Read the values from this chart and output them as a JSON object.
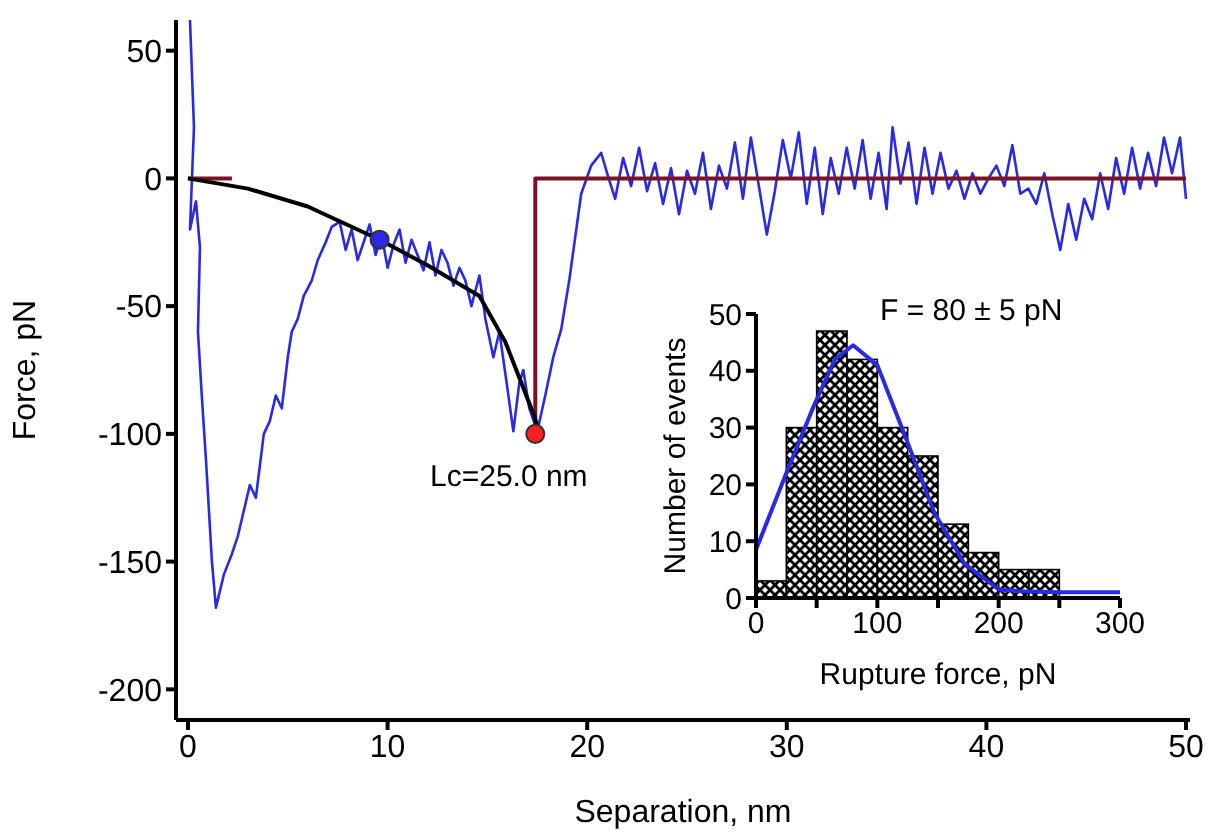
{
  "chart_data": [
    {
      "type": "line",
      "xlabel": "Separation, nm",
      "ylabel": "Force, pN",
      "xlim": [
        -0.6,
        50.2
      ],
      "ylim": [
        -212,
        62
      ],
      "xticks": [
        0,
        10,
        20,
        30,
        40,
        50
      ],
      "yticks": [
        50,
        0,
        -50,
        -100,
        -150,
        -200
      ],
      "annotations": [
        "Lc=25.0 nm"
      ],
      "series": [
        {
          "color": "#2a2ae6",
          "x": [
            0.1,
            0.3,
            0.1,
            0.4,
            0.6,
            0.5,
            0.7,
            0.9,
            1.2,
            1.4,
            1.8,
            2.2,
            2.5,
            2.8,
            3.1,
            3.4,
            3.8,
            4.1,
            4.4,
            4.7,
            5.0,
            5.2,
            5.5,
            5.8,
            6.2,
            6.5,
            6.9,
            7.2,
            7.6,
            7.9,
            8.2,
            8.5,
            8.8,
            9.1,
            9.4,
            9.7,
            10.0,
            10.3,
            10.6,
            10.9,
            11.2,
            11.5,
            11.8,
            12.1,
            12.4,
            12.7,
            13.0,
            13.3,
            13.6,
            13.9,
            14.2,
            14.6,
            14.9,
            15.3,
            15.6,
            16.0,
            16.3,
            16.6,
            16.8,
            17.1,
            17.5,
            17.9,
            18.3,
            18.7,
            19.1,
            19.7,
            20.2,
            20.7,
            21.0,
            21.4,
            21.8,
            22.2,
            22.6,
            23.0,
            23.4,
            23.8,
            24.2,
            24.6,
            25.0,
            25.4,
            25.8,
            26.2,
            26.6,
            27.0,
            27.4,
            27.8,
            28.2,
            28.6,
            29.0,
            29.4,
            29.8,
            30.2,
            30.6,
            31.0,
            31.4,
            31.8,
            32.2,
            32.6,
            33.0,
            33.4,
            33.8,
            34.2,
            34.6,
            35.0,
            35.3,
            35.7,
            36.1,
            36.5,
            36.9,
            37.3,
            37.7,
            38.1,
            38.5,
            38.9,
            39.3,
            39.7,
            40.1,
            40.5,
            40.9,
            41.3,
            41.7,
            42.1,
            42.5,
            42.9,
            43.3,
            43.7,
            44.1,
            44.5,
            44.9,
            45.3,
            45.7,
            46.1,
            46.5,
            46.9,
            47.3,
            47.7,
            48.1,
            48.5,
            48.9,
            49.3,
            49.7,
            50.0
          ],
          "values": [
            62,
            20,
            -20,
            -9,
            -27,
            -60,
            -86,
            -110,
            -150,
            -168,
            -155,
            -147,
            -140,
            -130,
            -120,
            -125,
            -100,
            -95,
            -85,
            -90,
            -70,
            -60,
            -55,
            -46,
            -40,
            -32,
            -25,
            -19,
            -17,
            -28,
            -20,
            -32,
            -25,
            -18,
            -30,
            -22,
            -35,
            -26,
            -20,
            -33,
            -24,
            -30,
            -36,
            -25,
            -38,
            -28,
            -33,
            -42,
            -35,
            -40,
            -50,
            -38,
            -55,
            -70,
            -60,
            -82,
            -99,
            -80,
            -75,
            -90,
            -99,
            -85,
            -70,
            -59,
            -40,
            -6,
            5,
            10,
            2,
            -8,
            8,
            -3,
            12,
            -5,
            6,
            -10,
            4,
            -14,
            3,
            -6,
            10,
            -12,
            5,
            -4,
            14,
            -8,
            16,
            -3,
            -22,
            -5,
            15,
            0,
            18,
            -10,
            12,
            -14,
            8,
            -6,
            12,
            -4,
            15,
            -8,
            10,
            -12,
            20,
            -2,
            14,
            -10,
            12,
            -6,
            10,
            -4,
            3,
            -8,
            2,
            -6,
            0,
            5,
            -3,
            13,
            -6,
            -4,
            -10,
            2,
            -14,
            -28,
            -10,
            -24,
            -8,
            -16,
            2,
            -12,
            8,
            -6,
            12,
            -4,
            10,
            -3,
            16,
            2,
            16,
            -8
          ]
        },
        {
          "color": "#7a1424",
          "x": [
            0,
            2.2
          ],
          "values": [
            0,
            0
          ]
        },
        {
          "color": "#7a1424",
          "x": [
            17.4,
            17.4,
            50
          ],
          "values": [
            -98,
            0,
            0
          ]
        },
        {
          "color": "#000000",
          "x": [
            0,
            3,
            6,
            9.6,
            12,
            14.6,
            15.9,
            17.3,
            17.5
          ],
          "values": [
            0,
            -4,
            -11,
            -24,
            -34,
            -46,
            -64,
            -92,
            -97
          ]
        },
        {
          "type": "scatter",
          "marker": "circle",
          "color": "#2a2ae6",
          "x": [
            9.6
          ],
          "values": [
            -24
          ]
        },
        {
          "type": "scatter",
          "marker": "circle",
          "color": "#ff2020",
          "x": [
            17.4
          ],
          "values": [
            -100
          ]
        }
      ]
    },
    {
      "type": "histogram",
      "title": "F = 80 ± 5 pN",
      "xlabel": "Rupture force, pN",
      "ylabel": "Number of events",
      "xlim": [
        0,
        300
      ],
      "ylim": [
        0,
        50
      ],
      "xticks": [
        0,
        {
          "value": 50,
          "label": null
        },
        100,
        {
          "value": 150,
          "label": null
        },
        200,
        {
          "value": 250,
          "label": null
        },
        300
      ],
      "yticks": [
        0,
        10,
        20,
        30,
        40,
        50
      ],
      "series": [
        {
          "color": "#000000",
          "bins": [
            0,
            25,
            50,
            75,
            100,
            125,
            150,
            175,
            200,
            225,
            250
          ],
          "values": [
            3,
            30,
            47,
            42,
            30,
            25,
            13,
            8,
            5,
            5
          ]
        },
        {
          "type": "line",
          "color": "#2a2ae6",
          "x": [
            0,
            25,
            48,
            65,
            80,
            100,
            122,
            147,
            172,
            200,
            217,
            250,
            300
          ],
          "values": [
            8.5,
            22,
            34,
            42,
            44.5,
            41,
            29,
            15,
            6,
            1.5,
            1.2,
            1,
            1
          ]
        }
      ]
    }
  ]
}
